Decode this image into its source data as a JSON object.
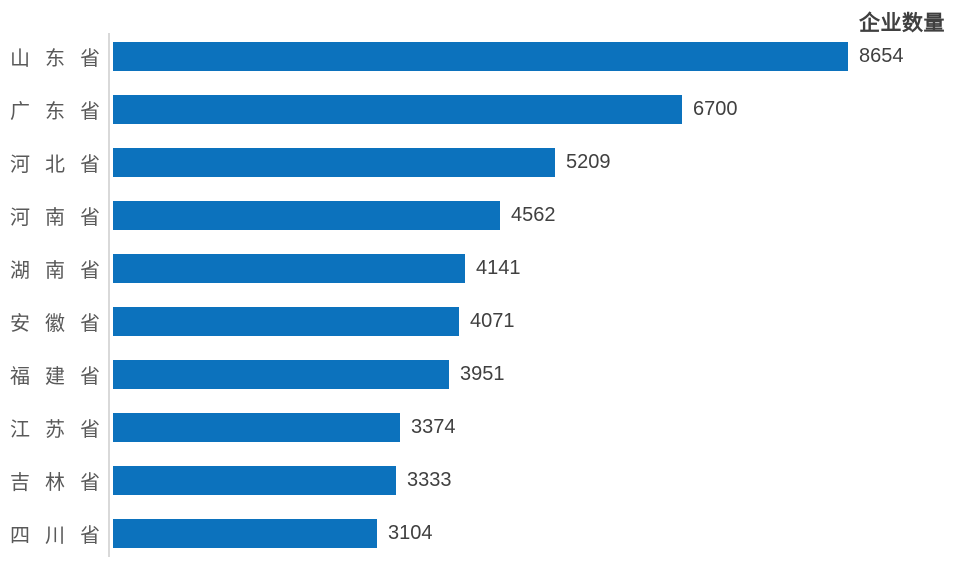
{
  "chart_data": {
    "type": "bar",
    "orientation": "horizontal",
    "title": "企业数量",
    "categories": [
      "山东省",
      "广东省",
      "河北省",
      "河南省",
      "湖南省",
      "安徽省",
      "福建省",
      "江苏省",
      "吉林省",
      "四川省"
    ],
    "values": [
      8654,
      6700,
      5209,
      4562,
      4141,
      4071,
      3951,
      3374,
      3333,
      3104
    ],
    "xlabel": "",
    "ylabel": "",
    "xlim": [
      0,
      8654
    ],
    "grid": false,
    "legend_position": "none",
    "data_labels": "outside-end",
    "colors": {
      "bar": "#0c72bd",
      "category_label": "#595959",
      "value_label": "#404040",
      "title": "#404040",
      "axis_line": "#d9d9d9",
      "background": "#ffffff"
    }
  }
}
